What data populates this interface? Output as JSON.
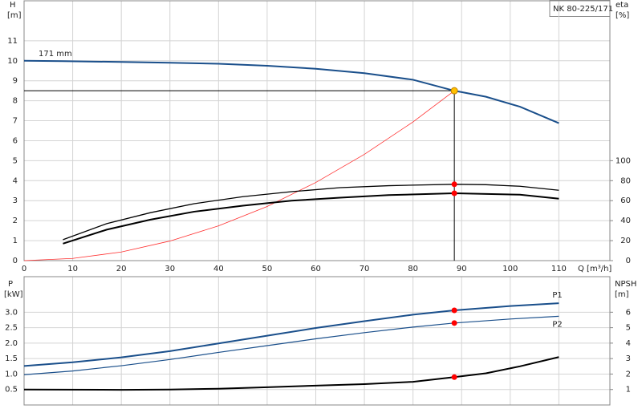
{
  "chart_data": [
    {
      "type": "line",
      "title": "NK 80-225/171",
      "ylabel": "H",
      "yunit": "[m]",
      "y2label": "eta",
      "y2unit": "[%]",
      "xlabel": "Q [m³/h]",
      "annotation": "171 mm",
      "xlim": [
        0,
        120.5
      ],
      "xticks": [
        0,
        10,
        20,
        30,
        40,
        50,
        60,
        70,
        80,
        90,
        100,
        110
      ],
      "ylim": [
        0,
        13
      ],
      "yticks": [
        0,
        1,
        2,
        3,
        4,
        5,
        6,
        7,
        8,
        9,
        10,
        11
      ],
      "y2lim": [
        0,
        260
      ],
      "y2ticks": [
        0,
        20,
        40,
        60,
        80,
        100
      ],
      "grid": true,
      "operating_point": {
        "x": 88.5,
        "y": 8.5,
        "color": "#ffc000"
      },
      "series": [
        {
          "color": "#1a4f8b",
          "width": 2,
          "x": [
            0,
            8,
            20,
            30,
            40,
            50,
            60,
            70,
            80,
            88.5,
            95,
            102,
            110
          ],
          "values": [
            10.0,
            9.98,
            9.94,
            9.9,
            9.85,
            9.75,
            9.6,
            9.38,
            9.05,
            8.5,
            8.2,
            7.7,
            6.88
          ]
        },
        {
          "color": "#ff3030",
          "width": 0.8,
          "x": [
            0,
            10,
            20,
            30,
            40,
            50,
            60,
            70,
            80,
            88.5
          ],
          "values": [
            0,
            0.11,
            0.43,
            0.98,
            1.74,
            2.71,
            3.91,
            5.32,
            6.94,
            8.5
          ]
        },
        {
          "color": "#000000",
          "width": 1.3,
          "axis": "y2",
          "marker": 76.4,
          "x": [
            8,
            17,
            26,
            35,
            45,
            55,
            65,
            75,
            88.5,
            95,
            102,
            110
          ],
          "values": [
            21,
            37,
            48,
            57,
            64,
            69,
            73,
            75,
            76.4,
            76,
            74.4,
            70.4
          ]
        },
        {
          "color": "#000000",
          "width": 2,
          "axis": "y2",
          "marker": 67.4,
          "x": [
            8,
            17,
            26,
            35,
            45,
            55,
            65,
            75,
            88.5,
            102,
            110
          ],
          "values": [
            17,
            31,
            41,
            49,
            55,
            60,
            63,
            65.6,
            67.4,
            66,
            62
          ]
        }
      ]
    },
    {
      "type": "line",
      "ylabel": "P",
      "yunit": "[kW]",
      "y2label": "NPSH",
      "y2unit": "[m]",
      "xlim": [
        0,
        120.5
      ],
      "xticks": [
        0,
        10,
        20,
        30,
        40,
        50,
        60,
        70,
        80,
        90,
        100,
        110
      ],
      "show_xtick_labels": false,
      "ylim": [
        0,
        4.15
      ],
      "yticks": [
        0.5,
        {
          "value": 1,
          "label": "1.0"
        },
        1.5,
        {
          "value": 2,
          "label": "2.0"
        },
        2.5,
        {
          "value": 3,
          "label": "3.0"
        }
      ],
      "y2lim": [
        0,
        8.3
      ],
      "y2ticks": [
        1,
        2,
        3,
        4,
        5,
        6
      ],
      "grid": true,
      "marker_x": 88.5,
      "series": [
        {
          "name": "P1",
          "color": "#1a4f8b",
          "width": 2,
          "marker": 3.06,
          "x": [
            0,
            10,
            20,
            30,
            40,
            50,
            60,
            70,
            80,
            88.5,
            100,
            110
          ],
          "values": [
            1.26,
            1.38,
            1.54,
            1.74,
            1.99,
            2.24,
            2.49,
            2.71,
            2.92,
            3.06,
            3.2,
            3.29
          ]
        },
        {
          "name": "P2",
          "color": "#1a4f8b",
          "width": 1.2,
          "marker": 2.65,
          "x": [
            0,
            10,
            20,
            30,
            40,
            50,
            60,
            70,
            80,
            88.5,
            100,
            110
          ],
          "values": [
            0.98,
            1.1,
            1.27,
            1.47,
            1.7,
            1.92,
            2.14,
            2.34,
            2.52,
            2.65,
            2.78,
            2.87
          ]
        },
        {
          "color": "#000000",
          "width": 2,
          "axis": "y2",
          "marker": 1.8,
          "x": [
            0,
            20,
            30,
            40,
            50,
            60,
            70,
            80,
            88.5,
            95,
            102,
            110
          ],
          "values": [
            1.0,
            0.98,
            1.0,
            1.05,
            1.15,
            1.25,
            1.35,
            1.5,
            1.8,
            2.05,
            2.5,
            3.1
          ]
        }
      ]
    }
  ]
}
